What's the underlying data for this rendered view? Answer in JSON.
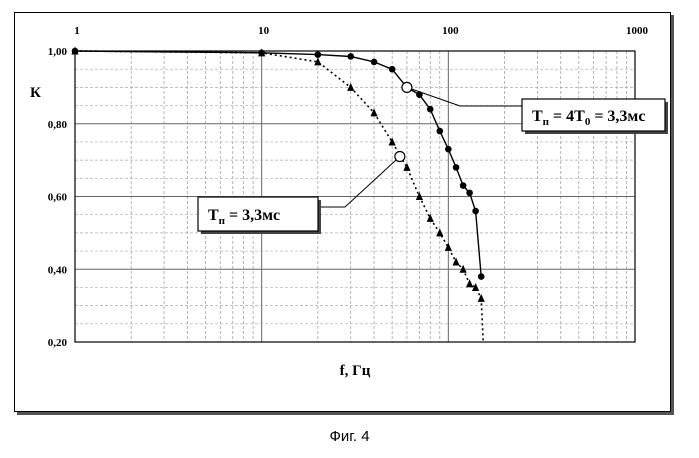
{
  "caption": "Фиг. 4",
  "chart_data": {
    "type": "line",
    "title": "",
    "xlabel": "f, Гц",
    "ylabel": "К",
    "xscale": "log",
    "xlim": [
      1,
      1000
    ],
    "ylim": [
      0.2,
      1.0
    ],
    "x_ticks": [
      "1",
      "10",
      "100",
      "1000"
    ],
    "y_ticks": [
      "1,00",
      "0,80",
      "0,60",
      "0,40",
      "0,20"
    ],
    "grid": true,
    "series": [
      {
        "name": "Тп = 4Т0 = 3,3мс",
        "marker": "circle",
        "line_style": "solid",
        "x": [
          1,
          10,
          20,
          30,
          40,
          50,
          60,
          70,
          80,
          90,
          100,
          110,
          120,
          130,
          140,
          150
        ],
        "y": [
          1.0,
          0.995,
          0.99,
          0.985,
          0.97,
          0.95,
          0.9,
          0.88,
          0.84,
          0.78,
          0.73,
          0.68,
          0.63,
          0.61,
          0.56,
          0.38
        ]
      },
      {
        "name": "Тп = 3,3мс",
        "marker": "triangle",
        "line_style": "dotted",
        "x": [
          1,
          10,
          20,
          30,
          40,
          50,
          60,
          70,
          80,
          90,
          100,
          110,
          120,
          130,
          140,
          150
        ],
        "y": [
          1.0,
          0.995,
          0.97,
          0.9,
          0.83,
          0.75,
          0.68,
          0.6,
          0.54,
          0.5,
          0.46,
          0.42,
          0.4,
          0.36,
          0.35,
          0.32
        ]
      }
    ],
    "annotations": [
      {
        "label_main": "Т",
        "label_sub": "п",
        "label_rest": " = 4Т",
        "label_sub2": "0",
        "label_tail": " = 3,3мс",
        "x": 60,
        "y": 0.9,
        "series": 0
      },
      {
        "label_main": "Т",
        "label_sub": "п",
        "label_rest": " = 3,3мс",
        "label_sub2": "",
        "label_tail": "",
        "x": 55,
        "y": 0.71,
        "series": 1
      }
    ]
  }
}
